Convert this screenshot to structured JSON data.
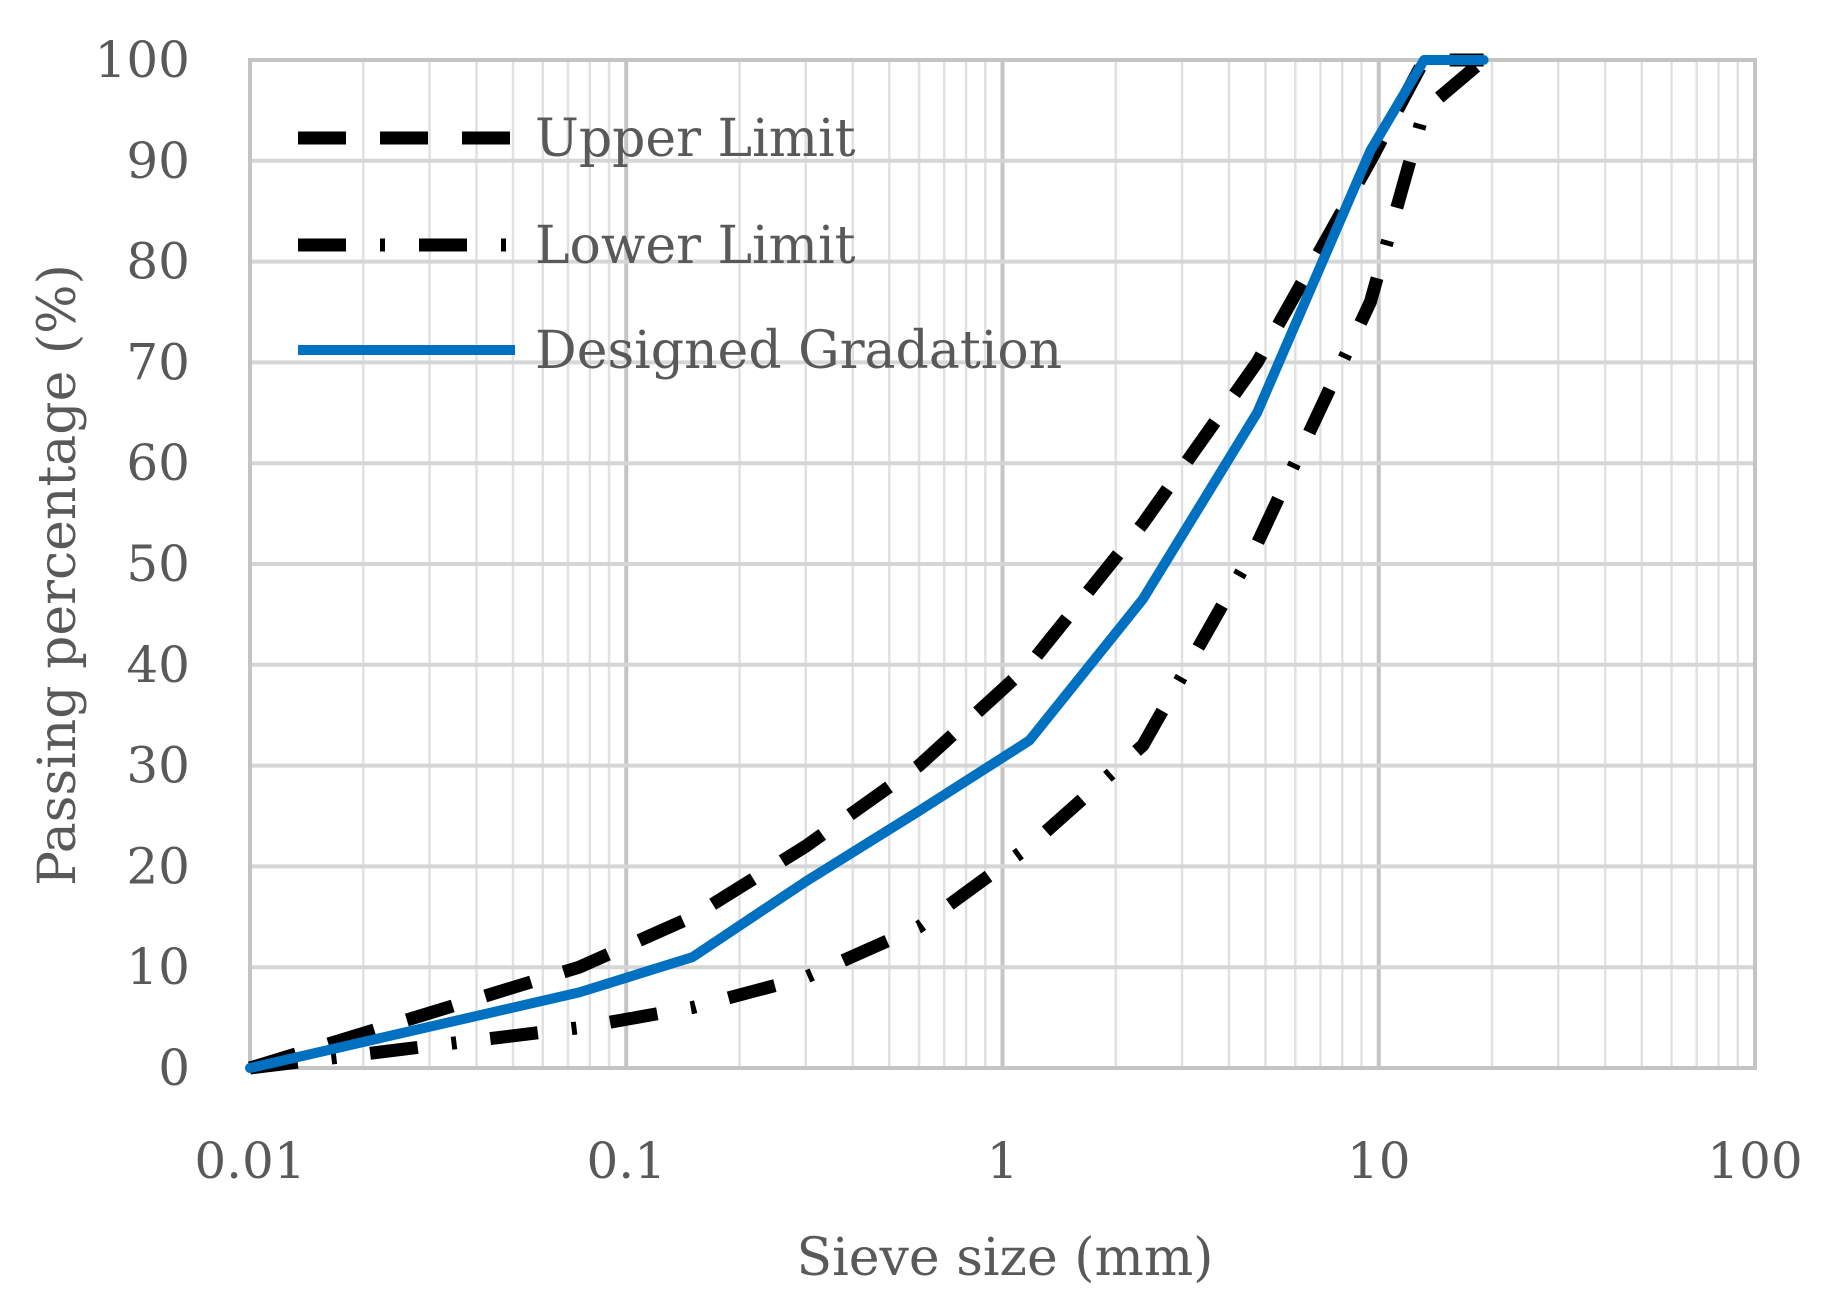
{
  "chart_data": {
    "type": "line",
    "xscale": "log",
    "xlabel": "Sieve size (mm)",
    "ylabel": "Passing percentage (%)",
    "xlim": [
      0.01,
      100
    ],
    "ylim": [
      0,
      100
    ],
    "x_ticks": [
      "0.01",
      "0.1",
      "1",
      "10",
      "100"
    ],
    "y_ticks": [
      "0",
      "10",
      "20",
      "30",
      "40",
      "50",
      "60",
      "70",
      "80",
      "90",
      "100"
    ],
    "grid": true,
    "legend_position": "top-left",
    "series": [
      {
        "name": "Upper Limit",
        "style": "dashed",
        "color": "#000000",
        "x": [
          0.01,
          0.075,
          0.15,
          0.3,
          0.6,
          1.18,
          2.36,
          4.75,
          9.5,
          13.2,
          19
        ],
        "y": [
          0,
          10,
          15,
          22,
          30,
          40,
          54,
          70,
          90,
          100,
          100
        ]
      },
      {
        "name": "Lower Limit",
        "style": "dash-dot",
        "color": "#000000",
        "x": [
          0.01,
          0.075,
          0.15,
          0.3,
          0.6,
          1.18,
          2.36,
          4.75,
          9.5,
          13.2,
          19
        ],
        "y": [
          0,
          4,
          6,
          9,
          14,
          22,
          32,
          52,
          76,
          95,
          100
        ]
      },
      {
        "name": "Designed Gradation",
        "style": "solid",
        "color": "#0070C0",
        "x": [
          0.01,
          0.075,
          0.15,
          0.3,
          0.6,
          1.18,
          2.36,
          4.75,
          9.5,
          13.2,
          19
        ],
        "y": [
          0,
          7.5,
          11,
          18.5,
          25.5,
          32.5,
          46.5,
          65,
          91,
          100,
          100
        ]
      }
    ]
  }
}
